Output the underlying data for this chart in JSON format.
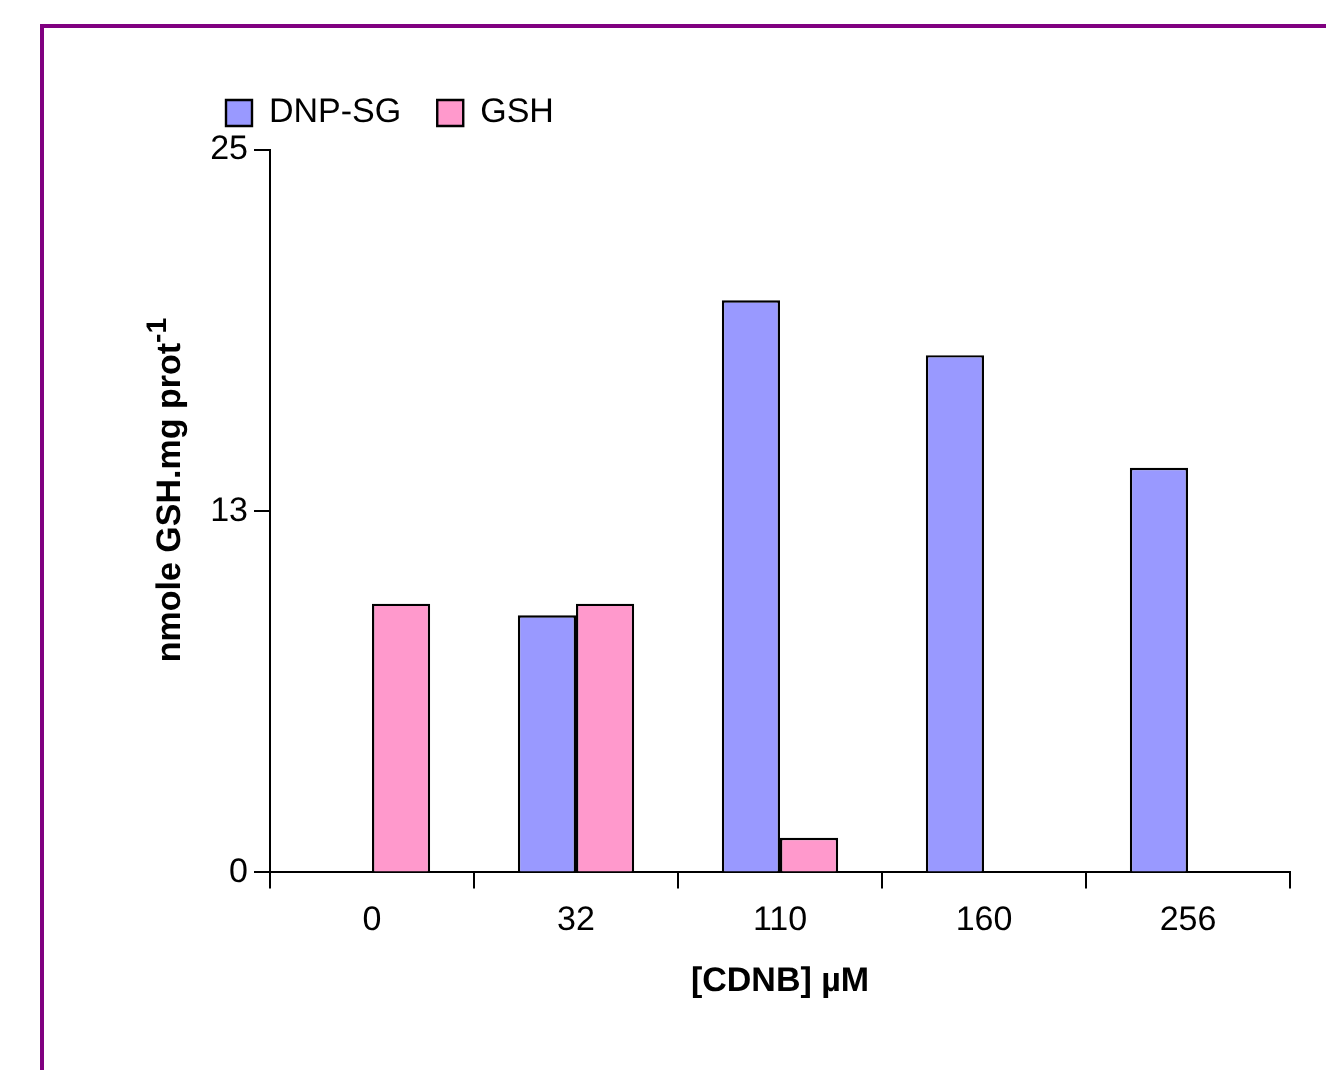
{
  "chart_data": {
    "type": "bar",
    "xlabel": "[CDNB] µM",
    "ylabel": "nmole GSH.mg prot$^{-1}$",
    "categories": [
      "0",
      "32",
      "110",
      "160",
      "256"
    ],
    "series": [
      {
        "name": "DNP-SG",
        "color": "#9999ff",
        "values": [
          null,
          8.9,
          19.8,
          17.9,
          14.0
        ]
      },
      {
        "name": "GSH",
        "color": "#ff99cc",
        "values": [
          9.3,
          9.3,
          1.2,
          null,
          null
        ]
      }
    ],
    "ylim": [
      0,
      25
    ],
    "yticks": [
      0,
      {
        "value": 12.5,
        "label": "13"
      },
      25
    ],
    "grid": false,
    "legend": "top"
  }
}
